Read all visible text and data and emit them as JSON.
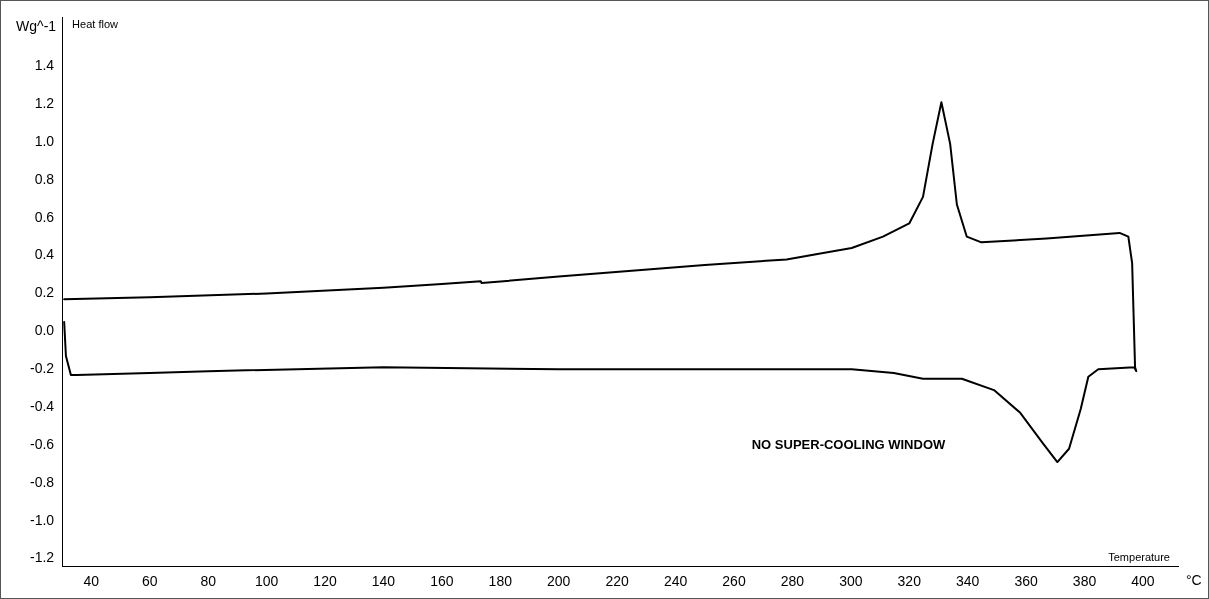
{
  "chart_data": {
    "type": "line",
    "xlabel": "Temperature",
    "ylabel": "Wg^-1",
    "annotations": [
      "°C",
      "NO SUPER-COOLING WINDOW",
      "Heat flow"
    ],
    "xlim": [
      30,
      412
    ],
    "ylim": [
      -1.24,
      1.66
    ],
    "xticks": [
      40,
      60,
      80,
      100,
      120,
      140,
      160,
      180,
      200,
      220,
      240,
      260,
      280,
      300,
      320,
      340,
      360,
      380,
      400
    ],
    "yticks": [
      -1.2,
      {
        "value": -1,
        "label": "-1.0"
      },
      -0.8,
      -0.6,
      -0.4,
      -0.2,
      {
        "value": 0,
        "label": "0.0"
      },
      0.2,
      0.4,
      0.6,
      0.8,
      {
        "value": 1,
        "label": "1.0"
      },
      1.2,
      1.4
    ],
    "grid": false,
    "legend": false,
    "marker": "none",
    "line_style": "solid",
    "series": [
      {
        "color": "#000000",
        "x": [
          30.7,
          60,
          100,
          140,
          160,
          173.3,
          173.6,
          200,
          250,
          278,
          300.3,
          311,
          320,
          324.7,
          328,
          331,
          334,
          336.3,
          339.7,
          344.7,
          367,
          392,
          395,
          396.3,
          397.3,
          397.7,
          397,
          384.7,
          381.3,
          378.7,
          374.7,
          370.7,
          365.7,
          358,
          349,
          338,
          324.7,
          314.7,
          300.3,
          200,
          140,
          80,
          60,
          35,
          33,
          31.3,
          30.7
        ],
        "values": [
          0.17,
          0.18,
          0.2,
          0.23,
          0.25,
          0.265,
          0.255,
          0.29,
          0.35,
          0.38,
          0.44,
          0.5,
          0.57,
          0.71,
          0.99,
          1.21,
          0.99,
          0.67,
          0.5,
          0.47,
          0.49,
          0.52,
          0.5,
          0.36,
          -0.19,
          -0.21,
          -0.19,
          -0.2,
          -0.24,
          -0.41,
          -0.62,
          -0.69,
          -0.59,
          -0.43,
          -0.31,
          -0.25,
          -0.25,
          -0.22,
          -0.2,
          -0.2,
          -0.19,
          -0.21,
          -0.22,
          -0.23,
          -0.23,
          -0.13,
          0.05
        ]
      }
    ]
  }
}
